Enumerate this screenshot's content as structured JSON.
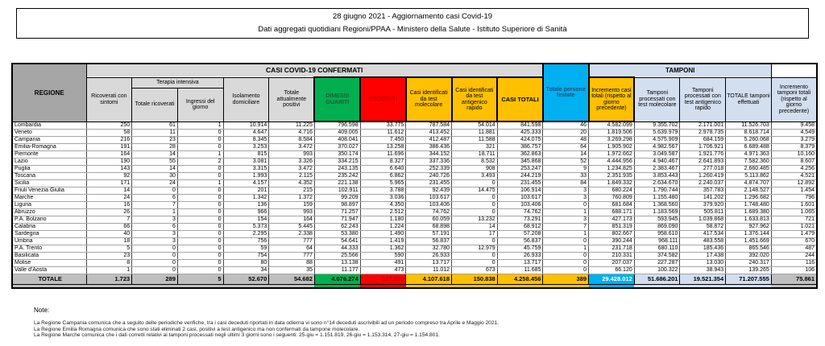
{
  "title": {
    "line1": "28 giugno 2021 - Aggiornamento casi Covid-19",
    "line2": "Dati aggregati quotidiani Regioni/PPAA - Ministero della Salute - Istituto Superiore di Sanità"
  },
  "colors": {
    "green": "#00B050",
    "red": "#FF0000",
    "dark_red": "#C00000",
    "yellow": "#FFC000",
    "cyan": "#00B0F0",
    "light_blue": "#D3DEEF",
    "header_gray": "#A6A6A6",
    "light_gray": "#D9D9D9",
    "totale_gray": "#BFBFBF"
  },
  "table": {
    "headers": {
      "regione": "REGIONE",
      "casi_confermati": "CASI COVID-19 CONFERMATI",
      "tamponi": "TAMPONI",
      "ricoverati": "Ricoverati con sintomi",
      "terapia": "Terapia intensiva",
      "totale_ricoverati": "Totale ricoverati",
      "ingressi": "Ingressi del giorno",
      "isolamento": "Isolamento domiciliare",
      "attualmente_positivi": "Totale attualmente positivi",
      "dimessi": "DIMESSI GUARITI",
      "deceduti": "DECEDUTI",
      "casi_molecolare": "Casi identificati da test molecolare",
      "casi_antigenico": "Casi identificati da test antigenico rapido",
      "casi_totali": "CASI TOTALI",
      "incremento_casi": "Incremento casi totali (rispetto al giorno precedente)",
      "persone_testate": "Totale persone testate",
      "tamponi_molecolare": "Tamponi processati con test molecolare",
      "tamponi_antigenico": "Tamponi processati con test antigenico rapido",
      "totale_tamponi": "TOTALE tamponi effettuati",
      "incremento_tamponi": "Incremento tamponi totali (rispetto al giorno precedente)"
    },
    "rows": [
      {
        "regione": "Lombardia",
        "values": [
          "250",
          "61",
          "1",
          "10.914",
          "11.225",
          "796.598",
          "33.775",
          "787.584",
          "54.014",
          "841.598",
          "46",
          "4.582.099",
          "9.355.702",
          "2.171.001",
          "11.526.703",
          "9.458"
        ]
      },
      {
        "regione": "Veneto",
        "values": [
          "58",
          "11",
          "0",
          "4.647",
          "4.716",
          "409.005",
          "11.612",
          "413.452",
          "11.881",
          "425.333",
          "20",
          "1.819.506",
          "5.639.979",
          "2.978.735",
          "8.618.714",
          "4.549"
        ]
      },
      {
        "regione": "Campania",
        "values": [
          "216",
          "23",
          "0",
          "8.345",
          "8.584",
          "408.041",
          "7.450",
          "412.487",
          "11.588",
          "424.075",
          "48",
          "3.269.298",
          "4.575.909",
          "684.159",
          "5.260.068",
          "3.279"
        ]
      },
      {
        "regione": "Emilia-Romagna",
        "values": [
          "191",
          "28",
          "0",
          "3.253",
          "3.472",
          "370.027",
          "13.258",
          "386.436",
          "321",
          "386.757",
          "64",
          "1.905.902",
          "4.982.567",
          "1.706.921",
          "6.689.488",
          "8.379"
        ]
      },
      {
        "regione": "Piemonte",
        "values": [
          "164",
          "14",
          "1",
          "815",
          "993",
          "350.174",
          "11.696",
          "344.152",
          "18.711",
          "362.863",
          "14",
          "1.972.662",
          "3.049.587",
          "1.921.776",
          "4.971.363",
          "10.160"
        ]
      },
      {
        "regione": "Lazio",
        "values": [
          "190",
          "55",
          "2",
          "3.081",
          "3.326",
          "334.215",
          "8.327",
          "337.336",
          "8.532",
          "345.868",
          "52",
          "4.444.956",
          "4.940.467",
          "2.641.893",
          "7.582.360",
          "8.607"
        ]
      },
      {
        "regione": "Puglia",
        "values": [
          "143",
          "14",
          "0",
          "3.315",
          "3.472",
          "243.135",
          "6.640",
          "252.339",
          "908",
          "253.247",
          "9",
          "1.234.825",
          "2.383.467",
          "277.018",
          "2.660.485",
          "4.256"
        ]
      },
      {
        "regione": "Toscana",
        "values": [
          "92",
          "30",
          "0",
          "1.993",
          "2.115",
          "235.242",
          "6.862",
          "240.726",
          "3.493",
          "244.219",
          "33",
          "2.351.935",
          "3.853.443",
          "1.260.419",
          "5.113.862",
          "4.521"
        ]
      },
      {
        "regione": "Sicilia",
        "values": [
          "171",
          "24",
          "1",
          "4.157",
          "4.352",
          "221.138",
          "5.965",
          "231.455",
          "0",
          "231.455",
          "84",
          "1.849.332",
          "2.634.670",
          "2.240.037",
          "4.874.707",
          "12.892"
        ]
      },
      {
        "regione": "Friuli Venezia Giulia",
        "values": [
          "14",
          "0",
          "0",
          "201",
          "215",
          "102.911",
          "3.788",
          "92.439",
          "14.475",
          "106.914",
          "3",
          "680.224",
          "1.790.744",
          "357.783",
          "2.148.527",
          "1.454"
        ]
      },
      {
        "regione": "Marche",
        "values": [
          "24",
          "6",
          "0",
          "1.342",
          "1.372",
          "99.209",
          "3.036",
          "103.617",
          "0",
          "103.617",
          "3",
          "760.809",
          "1.155.480",
          "141.202",
          "1.296.682",
          "796"
        ]
      },
      {
        "regione": "Liguria",
        "values": [
          "16",
          "7",
          "0",
          "136",
          "159",
          "98.897",
          "4.350",
          "103.406",
          "0",
          "103.406",
          "0",
          "681.684",
          "1.368.560",
          "379.920",
          "1.748.480",
          "1.601"
        ]
      },
      {
        "regione": "Abruzzo",
        "values": [
          "26",
          "1",
          "0",
          "966",
          "993",
          "71.257",
          "2.512",
          "74.762",
          "0",
          "74.762",
          "1",
          "688.171",
          "1.183.569",
          "505.811",
          "1.689.380",
          "1.065"
        ]
      },
      {
        "regione": "P.A. Bolzano",
        "values": [
          "7",
          "3",
          "0",
          "154",
          "164",
          "71.947",
          "1.180",
          "60.059",
          "13.232",
          "73.291",
          "3",
          "427.173",
          "593.945",
          "1.039.868",
          "1.633.813",
          "721"
        ]
      },
      {
        "regione": "Calabria",
        "values": [
          "66",
          "6",
          "0",
          "5.373",
          "5.445",
          "62.243",
          "1.224",
          "68.898",
          "14",
          "68.912",
          "7",
          "851.319",
          "869.090",
          "58.872",
          "927.962",
          "1.021"
        ]
      },
      {
        "regione": "Sardegna",
        "values": [
          "40",
          "3",
          "0",
          "2.295",
          "2.338",
          "53.380",
          "1.490",
          "57.191",
          "17",
          "57.208",
          "1",
          "802.667",
          "958.610",
          "417.534",
          "1.376.144",
          "1.479"
        ]
      },
      {
        "regione": "Umbria",
        "values": [
          "18",
          "3",
          "0",
          "756",
          "777",
          "54.641",
          "1.419",
          "56.837",
          "0",
          "56.837",
          "0",
          "390.244",
          "968.111",
          "483.558",
          "1.451.669",
          "670"
        ]
      },
      {
        "regione": "P.A. Trento",
        "values": [
          "5",
          "0",
          "0",
          "59",
          "64",
          "44.333",
          "1.362",
          "32.780",
          "12.979",
          "45.759",
          "1",
          "231.718",
          "680.110",
          "185.436",
          "865.546",
          "487"
        ]
      },
      {
        "regione": "Basilicata",
        "values": [
          "23",
          "0",
          "0",
          "754",
          "777",
          "25.566",
          "590",
          "26.933",
          "0",
          "26.933",
          "0",
          "210.331",
          "374.582",
          "17.438",
          "392.020",
          "244"
        ]
      },
      {
        "regione": "Molise",
        "values": [
          "8",
          "0",
          "0",
          "80",
          "88",
          "13.138",
          "491",
          "13.717",
          "0",
          "13.717",
          "0",
          "207.037",
          "227.287",
          "13.030",
          "240.317",
          "116"
        ]
      },
      {
        "regione": "Valle d'Aosta",
        "values": [
          "1",
          "0",
          "0",
          "34",
          "35",
          "11.177",
          "473",
          "11.012",
          "673",
          "11.685",
          "0",
          "66.120",
          "100.322",
          "38.943",
          "139.265",
          "106"
        ]
      }
    ],
    "totale": {
      "label": "TOTALE",
      "values": [
        "1.723",
        "289",
        "5",
        "52.670",
        "54.682",
        "4.076.274",
        "127.500",
        "4.107.618",
        "150.838",
        "4.258.456",
        "389",
        "29.428.012",
        "51.686.201",
        "19.521.354",
        "71.207.555",
        "75.861"
      ]
    }
  },
  "notes": {
    "heading": "Note:",
    "lines": [
      "La Regione Campania comunica che a seguito delle periodiche verifiche, tra i casi deceduti riportati in data odierna vi sono n°14 deceduti ascrivibili ad un periodo compreso tra Aprile e Maggio 2021.",
      "La Regione Emilia Romagna comunica che sono stati eliminati 2 casi, positivi a test antigenico ma non confermati da tampone molecolare.",
      "La Regione Marche comunica che i dati corretti relativi ai tamponi processati negli ultimi 3 giorni sono i seguenti: 25-giu = 1.151.819, 26-giu = 1.153.314, 27-giu = 1.154.801."
    ]
  }
}
